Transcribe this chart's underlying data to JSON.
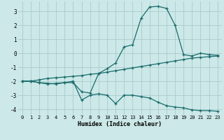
{
  "xlabel": "Humidex (Indice chaleur)",
  "bg_color": "#cce8e8",
  "line_color": "#1a6b6b",
  "grid_color": "#aacccc",
  "xlim": [
    -0.5,
    23.5
  ],
  "ylim": [
    -4.4,
    3.7
  ],
  "yticks": [
    -4,
    -3,
    -2,
    -1,
    0,
    1,
    2,
    3
  ],
  "xticks": [
    0,
    1,
    2,
    3,
    4,
    5,
    6,
    7,
    8,
    9,
    10,
    11,
    12,
    13,
    14,
    15,
    16,
    17,
    18,
    19,
    20,
    21,
    22,
    23
  ],
  "line1_x": [
    0,
    1,
    2,
    3,
    4,
    5,
    6,
    7,
    8,
    9,
    10,
    11,
    12,
    13,
    14,
    15,
    16,
    17,
    18,
    19,
    20,
    21,
    22,
    23
  ],
  "line1_y": [
    -2.0,
    -2.0,
    -2.1,
    -2.2,
    -2.15,
    -2.1,
    -2.0,
    -3.35,
    -3.0,
    -2.9,
    -3.0,
    -3.6,
    -3.0,
    -3.0,
    -3.1,
    -3.2,
    -3.5,
    -3.75,
    -3.85,
    -3.9,
    -4.05,
    -4.1,
    -4.1,
    -4.15
  ],
  "line2_x": [
    0,
    1,
    2,
    3,
    4,
    5,
    6,
    7,
    8,
    9,
    10,
    11,
    12,
    13,
    14,
    15,
    16,
    17,
    18,
    19,
    20,
    21,
    22,
    23
  ],
  "line2_y": [
    -2.0,
    -2.0,
    -2.1,
    -2.15,
    -2.2,
    -2.1,
    -2.1,
    -2.75,
    -2.85,
    -1.45,
    -1.1,
    -0.7,
    0.45,
    0.6,
    2.5,
    3.3,
    3.35,
    3.2,
    2.0,
    -0.1,
    -0.2,
    0.0,
    -0.1,
    -0.15
  ],
  "line3_x": [
    0,
    1,
    2,
    3,
    4,
    5,
    6,
    7,
    8,
    9,
    10,
    11,
    12,
    13,
    14,
    15,
    16,
    17,
    18,
    19,
    20,
    21,
    22,
    23
  ],
  "line3_y": [
    -2.0,
    -2.0,
    -1.9,
    -1.8,
    -1.75,
    -1.7,
    -1.65,
    -1.6,
    -1.5,
    -1.45,
    -1.35,
    -1.25,
    -1.15,
    -1.05,
    -0.95,
    -0.85,
    -0.75,
    -0.65,
    -0.55,
    -0.45,
    -0.35,
    -0.3,
    -0.25,
    -0.2
  ]
}
